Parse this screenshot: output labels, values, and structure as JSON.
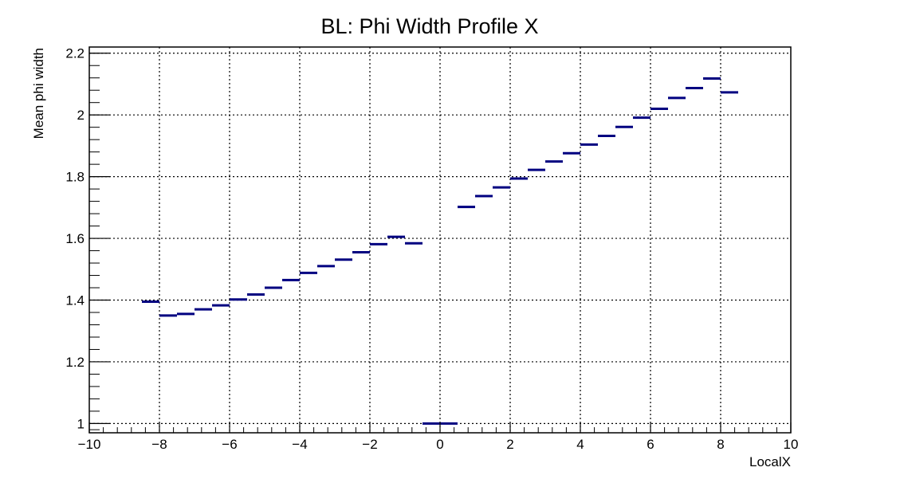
{
  "chart_data": {
    "type": "line",
    "title": "BL: Phi Width Profile X",
    "xlabel": "LocalX",
    "ylabel": "Mean phi width",
    "xlim": [
      -10,
      10
    ],
    "ylim": [
      0.97,
      2.22
    ],
    "xticks": [
      "−10",
      "−8",
      "−6",
      "−4",
      "−2",
      "0",
      "2",
      "4",
      "6",
      "8",
      "10"
    ],
    "yticks": [
      "1",
      "1.2",
      "1.4",
      "1.6",
      "1.8",
      "2",
      "2.2"
    ],
    "grid": true,
    "bin_width": 0.5,
    "series": [
      {
        "color": "#000080",
        "points": [
          {
            "x": -8.25,
            "y": 1.395
          },
          {
            "x": -7.75,
            "y": 1.35
          },
          {
            "x": -7.25,
            "y": 1.355
          },
          {
            "x": -6.75,
            "y": 1.37
          },
          {
            "x": -6.25,
            "y": 1.383
          },
          {
            "x": -5.75,
            "y": 1.402
          },
          {
            "x": -5.25,
            "y": 1.418
          },
          {
            "x": -4.75,
            "y": 1.44
          },
          {
            "x": -4.25,
            "y": 1.465
          },
          {
            "x": -3.75,
            "y": 1.488
          },
          {
            "x": -3.25,
            "y": 1.51
          },
          {
            "x": -2.75,
            "y": 1.531
          },
          {
            "x": -2.25,
            "y": 1.555
          },
          {
            "x": -1.75,
            "y": 1.581
          },
          {
            "x": -1.25,
            "y": 1.605
          },
          {
            "x": -0.75,
            "y": 1.584
          },
          {
            "x": -0.25,
            "y": 1.0
          },
          {
            "x": 0.25,
            "y": 1.0
          },
          {
            "x": 0.75,
            "y": 1.702
          },
          {
            "x": 1.25,
            "y": 1.737
          },
          {
            "x": 1.75,
            "y": 1.765
          },
          {
            "x": 2.25,
            "y": 1.794
          },
          {
            "x": 2.75,
            "y": 1.822
          },
          {
            "x": 3.25,
            "y": 1.849
          },
          {
            "x": 3.75,
            "y": 1.876
          },
          {
            "x": 4.25,
            "y": 1.904
          },
          {
            "x": 4.75,
            "y": 1.932
          },
          {
            "x": 5.25,
            "y": 1.961
          },
          {
            "x": 5.75,
            "y": 1.991
          },
          {
            "x": 6.25,
            "y": 2.02
          },
          {
            "x": 6.75,
            "y": 2.055
          },
          {
            "x": 7.25,
            "y": 2.087
          },
          {
            "x": 7.75,
            "y": 2.118
          },
          {
            "x": 8.25,
            "y": 2.073
          }
        ]
      }
    ]
  }
}
